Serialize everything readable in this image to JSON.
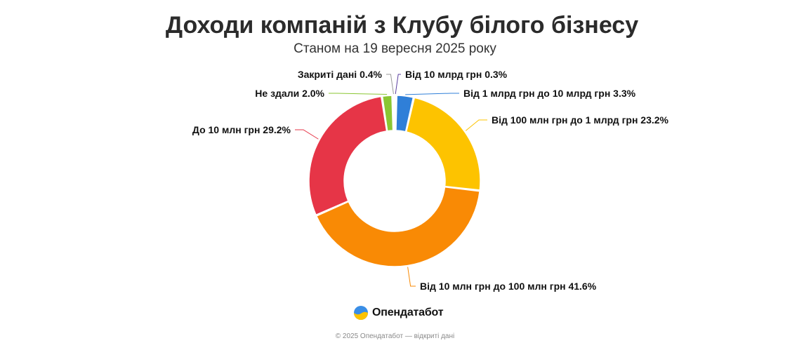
{
  "header": {
    "title": "Доходи компаній з Клубу білого бізнесу",
    "subtitle": "Станом на 19 вересня 2025 року"
  },
  "chart_data": {
    "type": "pie",
    "variant": "donut",
    "title": "Доходи компаній з Клубу білого бізнесу",
    "subtitle": "Станом на 19 вересня 2025 року",
    "unit": "%",
    "slices": [
      {
        "label": "Від 10 млрд грн",
        "value": 0.3,
        "color": "#5b3fa0",
        "display": "Від 10 млрд грн 0.3%"
      },
      {
        "label": "Від 1 млрд грн до 10 млрд грн",
        "value": 3.3,
        "color": "#2f7fd8",
        "display": "Від 1 млрд грн до 10 млрд грн 3.3%"
      },
      {
        "label": "Від 100 млн грн до 1 млрд грн",
        "value": 23.2,
        "color": "#fdc300",
        "display": "Від 100 млн грн до 1 млрд грн 23.2%"
      },
      {
        "label": "Від 10 млн грн до 100 млн грн",
        "value": 41.6,
        "color": "#f98a05",
        "display": "Від 10 млн грн до 100 млн грн 41.6%"
      },
      {
        "label": "До 10 млн грн",
        "value": 29.2,
        "color": "#e63547",
        "display": "До 10 млн грн 29.2%"
      },
      {
        "label": "Не здали",
        "value": 2.0,
        "color": "#8ac632",
        "display": "Не здали 2.0%"
      },
      {
        "label": "Закриті дані",
        "value": 0.4,
        "color": "#9a9a9a",
        "display": "Закриті дані 0.4%"
      }
    ],
    "legend": "none",
    "data_labels": "outside-with-connectors"
  },
  "brand": {
    "name": "Опендатабот",
    "logo_icon": "opendatabot-logo-icon",
    "logo_colors": [
      "#3a8ee6",
      "#fdc300"
    ]
  },
  "footer": {
    "text": "© 2025 Опендатабот — відкриті дані"
  }
}
